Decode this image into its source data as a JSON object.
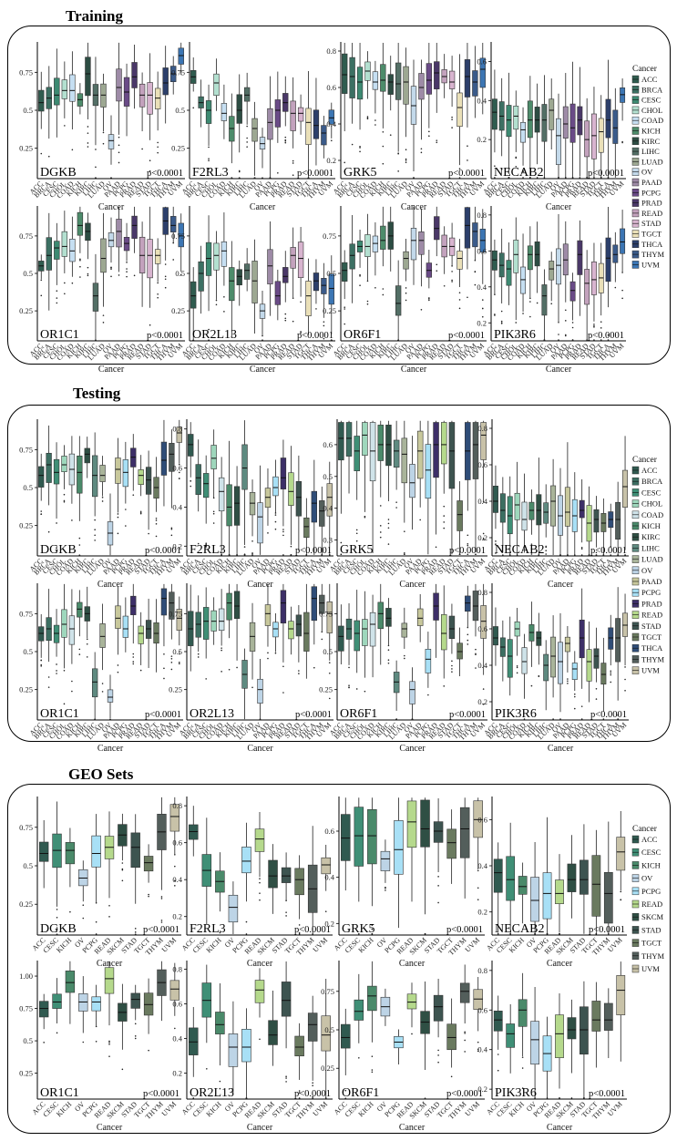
{
  "sections": [
    {
      "title": "Training",
      "cancers": [
        "ACC",
        "BRCA",
        "CESC",
        "CHOL",
        "COAD",
        "KICH",
        "KIRC",
        "LIHC",
        "LUAD",
        "OV",
        "PAAD",
        "PCPG",
        "PRAD",
        "READ",
        "STAD",
        "TGCT",
        "THCA",
        "THYM",
        "UVM"
      ],
      "legend_title": "Cancer",
      "xlabel": "Cancer",
      "panels": [
        {
          "gene": "DGKB",
          "p": "p<0.0001",
          "yticks": [
            0.25,
            0.5,
            0.75
          ],
          "ylim": [
            0.05,
            0.95
          ],
          "medians": [
            0.55,
            0.58,
            0.6,
            0.63,
            0.63,
            0.57,
            0.74,
            0.6,
            0.6,
            0.3,
            0.65,
            0.62,
            0.72,
            0.6,
            0.6,
            0.58,
            0.68,
            0.74,
            0.86
          ]
        },
        {
          "gene": "F2RL3",
          "p": "p<0.0001",
          "yticks": [
            0.25,
            0.5,
            0.75
          ],
          "ylim": [
            0.05,
            0.95
          ],
          "medians": [
            0.72,
            0.55,
            0.5,
            0.68,
            0.48,
            0.38,
            0.5,
            0.6,
            0.38,
            0.28,
            0.42,
            0.5,
            0.55,
            0.48,
            0.48,
            0.42,
            0.4,
            0.35,
            0.45
          ]
        },
        {
          "gene": "GRK5",
          "p": "p<0.0001",
          "yticks": [
            0.2,
            0.4,
            0.6,
            0.8
          ],
          "ylim": [
            0.1,
            0.85
          ],
          "medians": [
            0.67,
            0.66,
            0.63,
            0.69,
            0.63,
            0.64,
            0.63,
            0.62,
            0.63,
            0.5,
            0.6,
            0.64,
            0.68,
            0.66,
            0.63,
            0.49,
            0.66,
            0.63,
            0.7
          ]
        },
        {
          "gene": "NECAB2",
          "p": "p<0.0001",
          "yticks": [
            0.2,
            0.4,
            0.6
          ],
          "ylim": [
            0.0,
            0.7
          ],
          "medians": [
            0.34,
            0.32,
            0.3,
            0.32,
            0.25,
            0.3,
            0.3,
            0.3,
            0.35,
            0.22,
            0.28,
            0.26,
            0.3,
            0.2,
            0.22,
            0.24,
            0.3,
            0.26,
            0.43
          ]
        },
        {
          "gene": "OR1C1",
          "p": "p<0.0001",
          "yticks": [
            0.25,
            0.5,
            0.75
          ],
          "ylim": [
            0.05,
            0.95
          ],
          "medians": [
            0.55,
            0.62,
            0.67,
            0.68,
            0.65,
            0.82,
            0.78,
            0.35,
            0.6,
            0.72,
            0.78,
            0.7,
            0.82,
            0.62,
            0.62,
            0.62,
            0.85,
            0.82,
            0.75
          ]
        },
        {
          "gene": "OR2L13",
          "p": "p<0.0001",
          "yticks": [
            0.25,
            0.5,
            0.75
          ],
          "ylim": [
            0.05,
            0.95
          ],
          "medians": [
            0.35,
            0.5,
            0.6,
            0.62,
            0.65,
            0.45,
            0.48,
            0.52,
            0.45,
            0.25,
            0.55,
            0.35,
            0.48,
            0.62,
            0.6,
            0.35,
            0.45,
            0.42,
            0.4
          ]
        },
        {
          "gene": "OR6F1",
          "p": "p<0.0001",
          "yticks": [
            0.25,
            0.5,
            0.75
          ],
          "ylim": [
            0.05,
            0.95
          ],
          "medians": [
            0.52,
            0.62,
            0.68,
            0.68,
            0.7,
            0.72,
            0.75,
            0.3,
            0.6,
            0.72,
            0.72,
            0.52,
            0.8,
            0.68,
            0.68,
            0.6,
            0.82,
            0.78,
            0.72
          ]
        },
        {
          "gene": "PIK3R6",
          "p": "p<0.0001",
          "yticks": [
            0.2,
            0.4,
            0.6,
            0.8
          ],
          "ylim": [
            0.1,
            0.85
          ],
          "medians": [
            0.55,
            0.52,
            0.5,
            0.58,
            0.44,
            0.58,
            0.58,
            0.35,
            0.5,
            0.52,
            0.55,
            0.38,
            0.58,
            0.42,
            0.44,
            0.45,
            0.56,
            0.58,
            0.65
          ]
        }
      ]
    },
    {
      "title": "Testing",
      "cancers": [
        "ACC",
        "BRCA",
        "CESC",
        "CHOL",
        "COAD",
        "KICH",
        "KIRC",
        "LIHC",
        "LUAD",
        "OV",
        "PAAD",
        "PCPG",
        "PRAD",
        "READ",
        "STAD",
        "TGCT",
        "THCA",
        "THYM",
        "UVM"
      ],
      "legend_title": "Cancer",
      "xlabel": "Cancer",
      "panels": [
        {
          "gene": "DGKB",
          "p": "p<0.0001",
          "yticks": [
            0.25,
            0.5,
            0.75
          ],
          "ylim": [
            0.05,
            0.95
          ],
          "medians": [
            0.58,
            0.65,
            0.6,
            0.65,
            0.62,
            0.6,
            0.72,
            0.58,
            0.58,
            0.2,
            0.62,
            0.6,
            0.7,
            0.58,
            0.55,
            0.5,
            0.68,
            0.72,
            0.86
          ]
        },
        {
          "gene": "F2RL3",
          "p": "p<0.0001",
          "yticks": [
            0.2,
            0.4,
            0.6,
            0.8
          ],
          "ylim": [
            0.15,
            0.85
          ],
          "medians": [
            0.72,
            0.55,
            0.52,
            0.65,
            0.48,
            0.4,
            0.42,
            0.6,
            0.42,
            0.35,
            0.45,
            0.5,
            0.55,
            0.48,
            0.45,
            0.3,
            0.42,
            0.38,
            0.45
          ]
        },
        {
          "gene": "GRK5",
          "p": "p<0.0001",
          "yticks": [
            0.3,
            0.4,
            0.5,
            0.6
          ],
          "ylim": [
            0.25,
            0.68
          ],
          "medians": [
            0.62,
            0.62,
            0.58,
            0.63,
            0.58,
            0.6,
            0.6,
            0.58,
            0.57,
            0.48,
            0.58,
            0.52,
            0.6,
            0.6,
            0.58,
            0.38,
            0.58,
            0.6,
            0.63
          ]
        },
        {
          "gene": "NECAB2",
          "p": "p<0.0001",
          "yticks": [
            0.2,
            0.4,
            0.6,
            0.8
          ],
          "ylim": [
            0.1,
            0.85
          ],
          "medians": [
            0.4,
            0.35,
            0.32,
            0.38,
            0.3,
            0.35,
            0.35,
            0.34,
            0.4,
            0.32,
            0.34,
            0.32,
            0.35,
            0.28,
            0.3,
            0.28,
            0.3,
            0.3,
            0.48
          ]
        },
        {
          "gene": "OR1C1",
          "p": "p<0.0001",
          "yticks": [
            0.25,
            0.5,
            0.75
          ],
          "ylim": [
            0.05,
            0.95
          ],
          "medians": [
            0.62,
            0.65,
            0.62,
            0.68,
            0.65,
            0.78,
            0.75,
            0.3,
            0.6,
            0.2,
            0.72,
            0.65,
            0.8,
            0.62,
            0.65,
            0.62,
            0.85,
            0.82,
            0.72
          ]
        },
        {
          "gene": "OR2L13",
          "p": "p<0.0001",
          "yticks": [
            0.25,
            0.5,
            0.75
          ],
          "ylim": [
            0.05,
            0.95
          ],
          "medians": [
            0.65,
            0.68,
            0.7,
            0.7,
            0.7,
            0.82,
            0.8,
            0.35,
            0.6,
            0.25,
            0.75,
            0.65,
            0.82,
            0.65,
            0.68,
            0.62,
            0.85,
            0.82,
            0.75
          ]
        },
        {
          "gene": "OR6F1",
          "p": "p<0.0001",
          "yticks": [
            0.25,
            0.5,
            0.75
          ],
          "ylim": [
            0.05,
            0.95
          ],
          "medians": [
            0.6,
            0.65,
            0.62,
            0.65,
            0.68,
            0.75,
            0.72,
            0.3,
            0.65,
            0.25,
            0.72,
            0.45,
            0.8,
            0.62,
            0.65,
            0.5,
            0.82,
            0.8,
            0.7
          ]
        },
        {
          "gene": "PIK3R6",
          "p": "p<0.0001",
          "yticks": [
            0.2,
            0.4,
            0.6,
            0.8
          ],
          "ylim": [
            0.1,
            0.85
          ],
          "medians": [
            0.55,
            0.5,
            0.45,
            0.6,
            0.42,
            0.58,
            0.55,
            0.4,
            0.45,
            0.42,
            0.52,
            0.38,
            0.55,
            0.42,
            0.45,
            0.35,
            0.55,
            0.55,
            0.62
          ]
        }
      ]
    },
    {
      "title": "GEO Sets",
      "cancers": [
        "ACC",
        "CESC",
        "KICH",
        "OV",
        "PCPG",
        "READ",
        "SKCM",
        "STAD",
        "TGCT",
        "THYM",
        "UVM"
      ],
      "legend_title": "Cancer",
      "xlabel": "Cancer",
      "panels": [
        {
          "gene": "DGKB",
          "p": "p<0.0001",
          "yticks": [
            0.25,
            0.5,
            0.75
          ],
          "ylim": [
            0.05,
            0.95
          ],
          "medians": [
            0.58,
            0.6,
            0.6,
            0.42,
            0.58,
            0.62,
            0.7,
            0.62,
            0.52,
            0.72,
            0.82
          ]
        },
        {
          "gene": "F2RL3",
          "p": "p<0.0001",
          "yticks": [
            0.2,
            0.4,
            0.6,
            0.8
          ],
          "ylim": [
            0.1,
            0.85
          ],
          "medians": [
            0.66,
            0.45,
            0.39,
            0.25,
            0.5,
            0.62,
            0.42,
            0.42,
            0.4,
            0.35,
            0.48
          ]
        },
        {
          "gene": "GRK5",
          "p": "p<0.0001",
          "yticks": [
            0.2,
            0.4,
            0.6
          ],
          "ylim": [
            0.15,
            0.75
          ],
          "medians": [
            0.57,
            0.58,
            0.58,
            0.48,
            0.52,
            0.64,
            0.61,
            0.6,
            0.55,
            0.61,
            0.65
          ]
        },
        {
          "gene": "NECAB2",
          "p": "p<0.0001",
          "yticks": [
            0.2,
            0.4,
            0.6
          ],
          "ylim": [
            0.1,
            0.7
          ],
          "medians": [
            0.37,
            0.34,
            0.31,
            0.25,
            0.28,
            0.28,
            0.34,
            0.34,
            0.32,
            0.28,
            0.46
          ]
        },
        {
          "gene": "OR1C1",
          "p": "p<0.0001",
          "yticks": [
            0.25,
            0.5,
            0.75,
            1.0
          ],
          "ylim": [
            0.05,
            1.12
          ],
          "medians": [
            0.75,
            0.8,
            0.95,
            0.8,
            0.8,
            0.98,
            0.72,
            0.82,
            0.78,
            0.95,
            0.9
          ]
        },
        {
          "gene": "OR2L13",
          "p": "p<0.0001",
          "yticks": [
            0.2,
            0.4,
            0.6,
            0.8
          ],
          "ylim": [
            0.05,
            0.85
          ],
          "medians": [
            0.38,
            0.62,
            0.48,
            0.35,
            0.35,
            0.68,
            0.42,
            0.62,
            0.35,
            0.48,
            0.42
          ]
        },
        {
          "gene": "OR6F1",
          "p": "p<0.0001",
          "yticks": [
            0.25,
            0.5,
            0.75
          ],
          "ylim": [
            0.05,
            0.95
          ],
          "medians": [
            0.45,
            0.62,
            0.72,
            0.65,
            0.42,
            0.68,
            0.55,
            0.65,
            0.45,
            0.75,
            0.7
          ]
        },
        {
          "gene": "PIK3R6",
          "p": "p<0.0001",
          "yticks": [
            0.2,
            0.4,
            0.6,
            0.8
          ],
          "ylim": [
            0.15,
            0.85
          ],
          "medians": [
            0.55,
            0.48,
            0.6,
            0.45,
            0.38,
            0.48,
            0.5,
            0.5,
            0.55,
            0.55,
            0.7
          ]
        }
      ]
    }
  ],
  "colors": {
    "ACC": "#305a50",
    "BRCA": "#3c6f62",
    "CESC": "#3f8f76",
    "CHOL": "#9ed7bc",
    "COAD": "#cfe3e9",
    "KICH": "#4a8a6a",
    "KIRC": "#2f4f44",
    "LIHC": "#5e8a80",
    "LUAD": "#a9b49a",
    "OV": "#bdd4e6",
    "PAAD": "#c8c89c",
    "PCPG": "#a8e0f6",
    "PRAD": "#3d2f68",
    "READ": "#b5d98c",
    "SKCM": "#2f4f44",
    "STAD": "#3d5450",
    "TGCT": "#6a7a5f",
    "THCA": "#2f4d78",
    "THYM": "#535e5b",
    "UVM": "#c8c2a8"
  },
  "colors_training": {
    "ACC": "#2f5c4f",
    "BRCA": "#3c7063",
    "CESC": "#3d8a72",
    "CHOL": "#b3e0d0",
    "COAD": "#c6dff2",
    "KICH": "#4d8c6b",
    "KIRC": "#2d4d43",
    "LIHC": "#536f66",
    "LUAD": "#9da892",
    "OV": "#c3d9ea",
    "PAAD": "#9e8ba7",
    "PCPG": "#6a4b87",
    "PRAD": "#4a3868",
    "READ": "#c3a2bd",
    "STAD": "#d8b4cf",
    "TGCT": "#eae0b8",
    "THCA": "#2c3f6b",
    "THYM": "#3b5b8a",
    "UVM": "#3c76b4"
  }
}
